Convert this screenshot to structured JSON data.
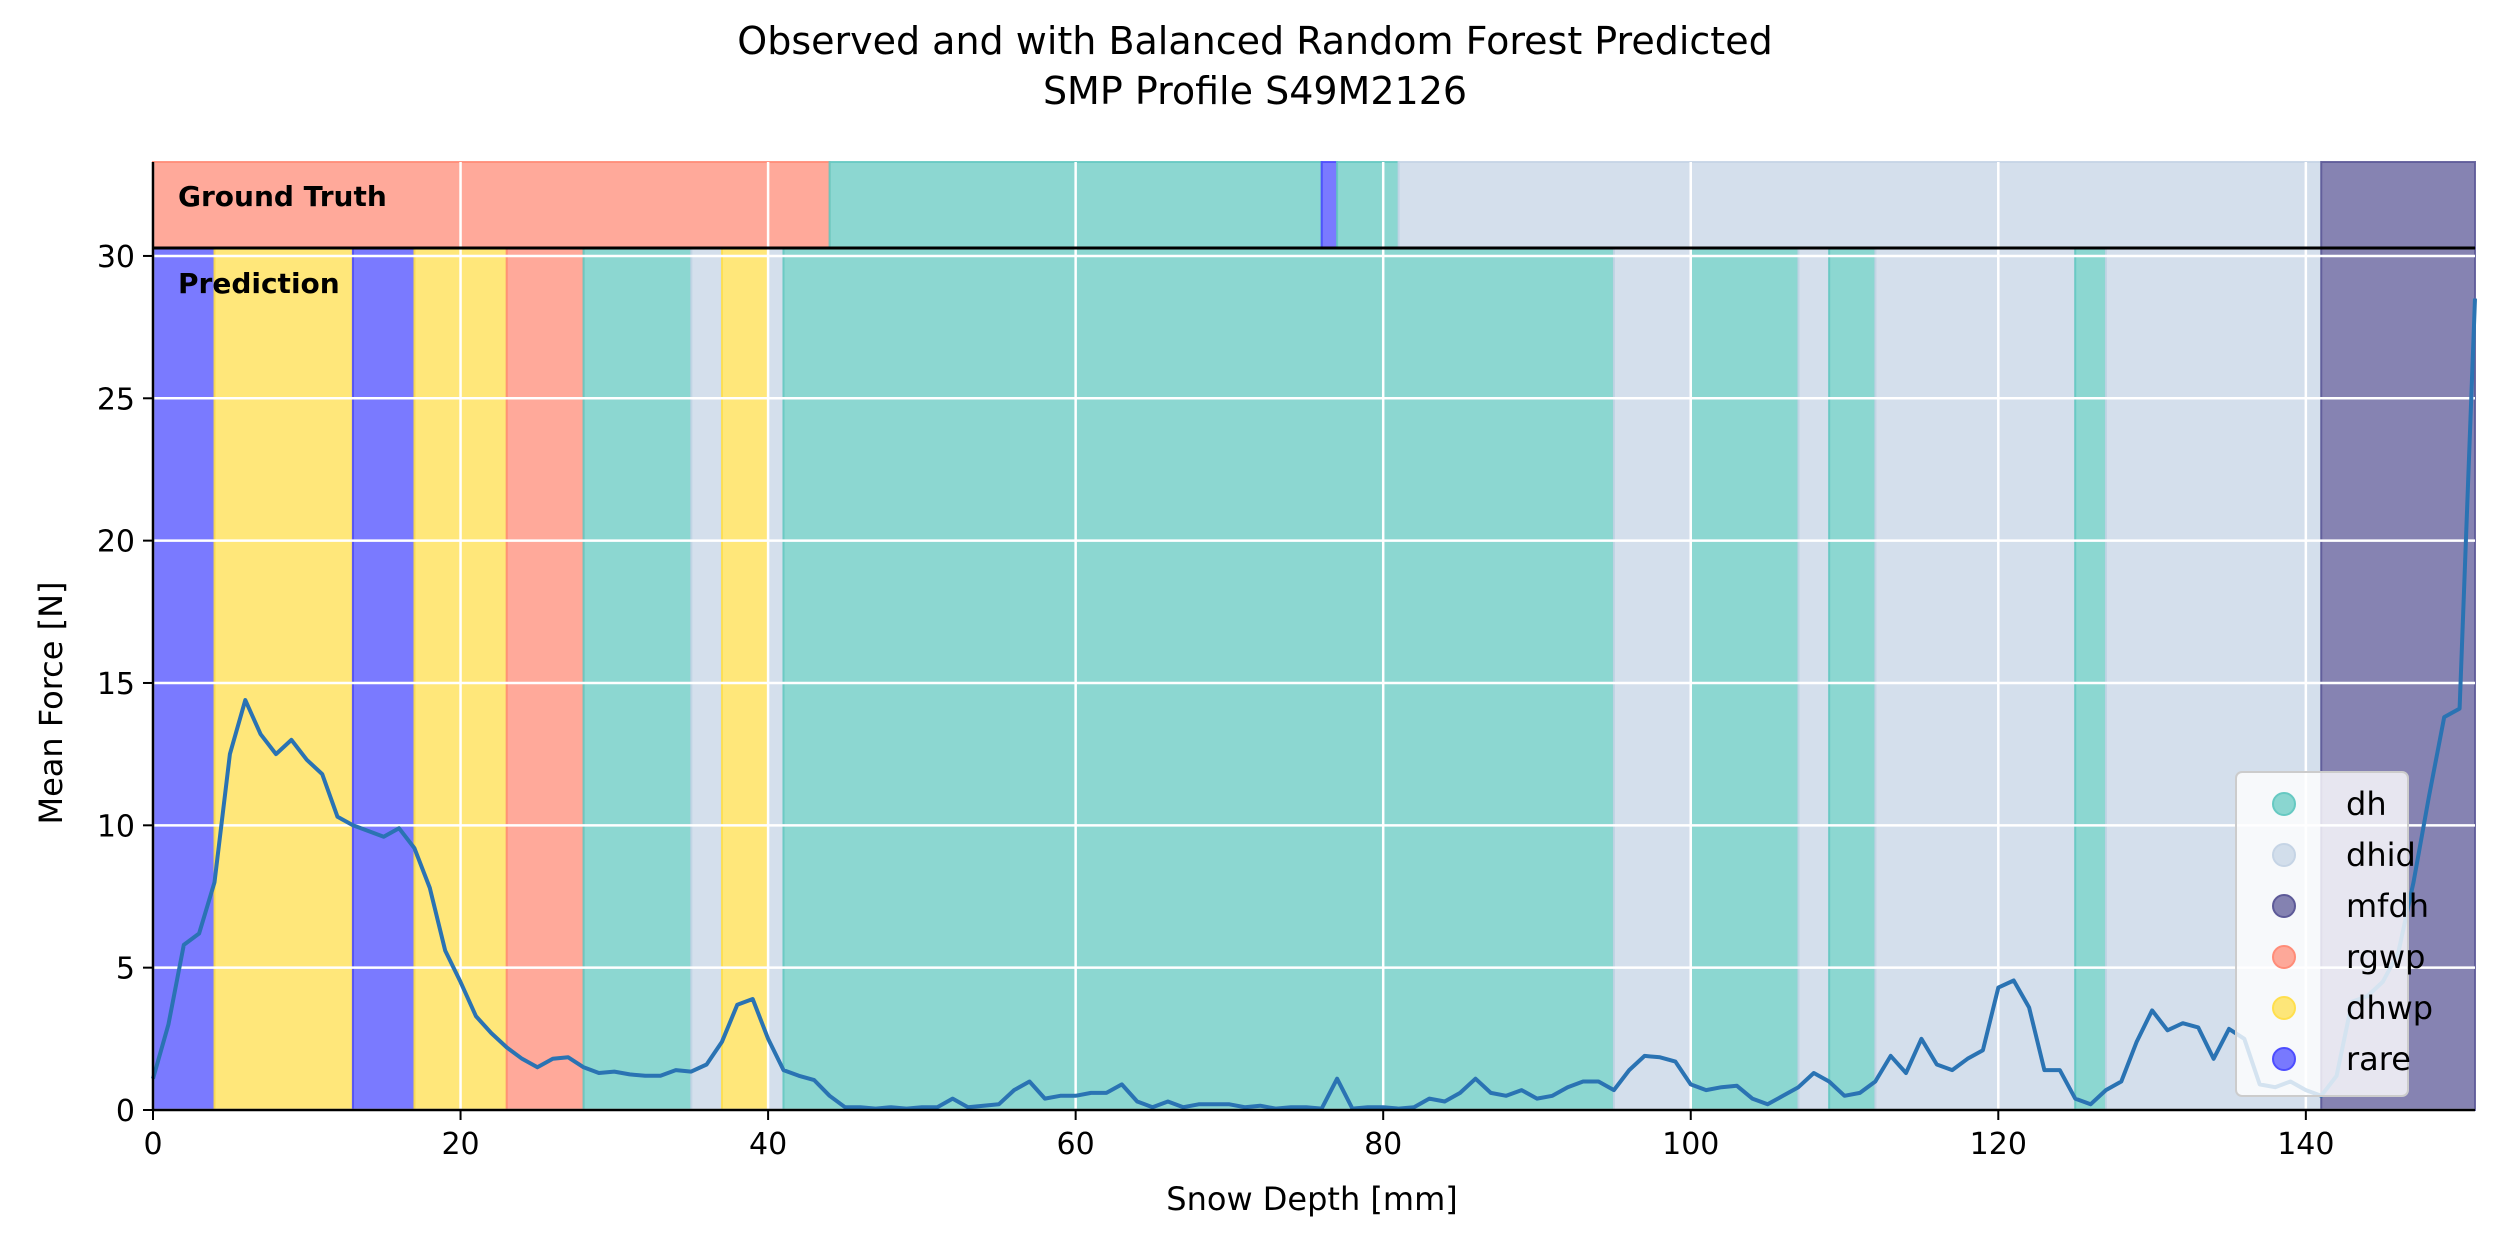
{
  "chart_data": {
    "type": "line",
    "title_lines": [
      "Observed and with Balanced Random Forest Predicted",
      "SMP Profile S49M2126"
    ],
    "xlabel": "Snow Depth [mm]",
    "ylabel": "Mean Force [N]",
    "xlim": [
      0,
      151
    ],
    "ylim": [
      0,
      33.3
    ],
    "xticks": [
      0,
      20,
      40,
      60,
      80,
      100,
      120,
      140
    ],
    "yticks": [
      0,
      5,
      10,
      15,
      20,
      25,
      30
    ],
    "grid": true,
    "legend_position": "lower-right",
    "band_labels": {
      "ground_truth": "Ground Truth",
      "prediction": "Prediction"
    },
    "classes": [
      {
        "name": "dh",
        "color": "#66c9c2"
      },
      {
        "name": "dhid",
        "color": "#c5d4e5"
      },
      {
        "name": "mfdh",
        "color": "#5d5a98"
      },
      {
        "name": "rgwp",
        "color": "#ff8c78"
      },
      {
        "name": "dhwp",
        "color": "#ffdf4d"
      },
      {
        "name": "rare",
        "color": "#4d4dff"
      }
    ],
    "ground_truth_segments": [
      {
        "start": 0,
        "end": 44,
        "class": "rgwp"
      },
      {
        "start": 44,
        "end": 76,
        "class": "dh"
      },
      {
        "start": 76,
        "end": 77,
        "class": "rare"
      },
      {
        "start": 77,
        "end": 81,
        "class": "dh"
      },
      {
        "start": 81,
        "end": 141,
        "class": "dhid"
      },
      {
        "start": 141,
        "end": 151,
        "class": "mfdh"
      }
    ],
    "prediction_segments": [
      {
        "start": 0,
        "end": 4,
        "class": "rare"
      },
      {
        "start": 4,
        "end": 13,
        "class": "dhwp"
      },
      {
        "start": 13,
        "end": 17,
        "class": "rare"
      },
      {
        "start": 17,
        "end": 23,
        "class": "dhwp"
      },
      {
        "start": 23,
        "end": 28,
        "class": "rgwp"
      },
      {
        "start": 28,
        "end": 35,
        "class": "dh"
      },
      {
        "start": 35,
        "end": 37,
        "class": "dhid"
      },
      {
        "start": 37,
        "end": 40,
        "class": "dhwp"
      },
      {
        "start": 40,
        "end": 41,
        "class": "dhid"
      },
      {
        "start": 41,
        "end": 95,
        "class": "dh"
      },
      {
        "start": 95,
        "end": 100,
        "class": "dhid"
      },
      {
        "start": 100,
        "end": 107,
        "class": "dh"
      },
      {
        "start": 107,
        "end": 109,
        "class": "dhid"
      },
      {
        "start": 109,
        "end": 112,
        "class": "dh"
      },
      {
        "start": 112,
        "end": 125,
        "class": "dhid"
      },
      {
        "start": 125,
        "end": 127,
        "class": "dh"
      },
      {
        "start": 127,
        "end": 141,
        "class": "dhid"
      },
      {
        "start": 141,
        "end": 151,
        "class": "mfdh"
      }
    ],
    "series": [
      {
        "x": [
          0,
          1,
          2,
          3,
          4,
          5,
          6,
          7,
          8,
          9,
          10,
          11,
          12,
          13,
          14,
          15,
          16,
          17,
          18,
          19,
          20,
          21,
          22,
          23,
          24,
          25,
          26,
          27,
          28,
          29,
          30,
          31,
          32,
          33,
          34,
          35,
          36,
          37,
          38,
          39,
          40,
          41,
          42,
          43,
          44,
          45,
          46,
          47,
          48,
          49,
          50,
          51,
          52,
          53,
          54,
          55,
          56,
          57,
          58,
          59,
          60,
          61,
          62,
          63,
          64,
          65,
          66,
          67,
          68,
          69,
          70,
          71,
          72,
          73,
          74,
          75,
          76,
          77,
          78,
          79,
          80,
          81,
          82,
          83,
          84,
          85,
          86,
          87,
          88,
          89,
          90,
          91,
          92,
          93,
          94,
          95,
          96,
          97,
          98,
          99,
          100,
          101,
          102,
          103,
          104,
          105,
          106,
          107,
          108,
          109,
          110,
          111,
          112,
          113,
          114,
          115,
          116,
          117,
          118,
          119,
          120,
          121,
          122,
          123,
          124,
          125,
          126,
          127,
          128,
          129,
          130,
          131,
          132,
          133,
          134,
          135,
          136,
          137,
          138,
          139,
          140,
          141,
          142,
          143,
          144,
          145,
          146,
          147,
          148,
          149,
          150,
          151
        ],
        "y": [
          1.1,
          3.0,
          5.8,
          6.2,
          8.0,
          12.5,
          14.4,
          13.2,
          12.5,
          13.0,
          12.3,
          11.8,
          10.3,
          10.0,
          9.8,
          9.6,
          9.9,
          9.2,
          7.8,
          5.6,
          4.5,
          3.3,
          2.7,
          2.2,
          1.8,
          1.5,
          1.8,
          1.85,
          1.5,
          1.3,
          1.35,
          1.25,
          1.2,
          1.2,
          1.4,
          1.35,
          1.6,
          2.4,
          3.7,
          3.9,
          2.5,
          1.4,
          1.2,
          1.05,
          0.5,
          0.1,
          0.1,
          0.05,
          0.1,
          0.05,
          0.1,
          0.1,
          0.4,
          0.1,
          0.15,
          0.2,
          0.7,
          1.0,
          0.4,
          0.5,
          0.5,
          0.6,
          0.6,
          0.9,
          0.3,
          0.1,
          0.3,
          0.1,
          0.2,
          0.2,
          0.2,
          0.1,
          0.15,
          0.05,
          0.1,
          0.1,
          0.05,
          1.1,
          0.05,
          0.1,
          0.1,
          0.05,
          0.1,
          0.4,
          0.3,
          0.6,
          1.1,
          0.6,
          0.5,
          0.7,
          0.4,
          0.5,
          0.8,
          1.0,
          1.0,
          0.7,
          1.4,
          1.9,
          1.85,
          1.7,
          0.9,
          0.7,
          0.8,
          0.85,
          0.4,
          0.2,
          0.5,
          0.8,
          1.3,
          1.0,
          0.5,
          0.6,
          1.0,
          1.9,
          1.3,
          2.5,
          1.6,
          1.4,
          1.8,
          2.1,
          4.3,
          4.55,
          3.6,
          1.4,
          1.4,
          0.4,
          0.2,
          0.7,
          1.0,
          2.4,
          3.5,
          2.8,
          3.05,
          2.9,
          1.8,
          2.85,
          2.5,
          0.9,
          0.8,
          1.0,
          0.7,
          0.5,
          1.2,
          3.8,
          4.0,
          4.5,
          5.5,
          8.0,
          11.0,
          13.8,
          14.1,
          28.5
        ]
      }
    ]
  }
}
